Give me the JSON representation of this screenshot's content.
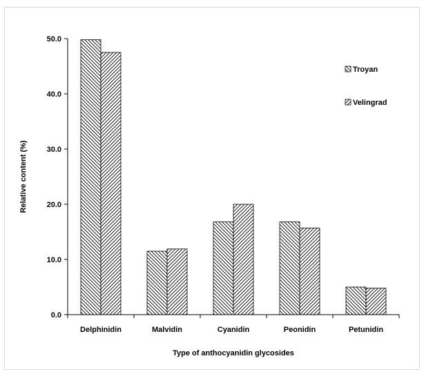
{
  "chart_data": {
    "type": "bar",
    "categories": [
      "Delphinidin",
      "Malvidin",
      "Cyanidin",
      "Peonidin",
      "Petunidin"
    ],
    "series": [
      {
        "name": "Troyan",
        "values": [
          49.8,
          11.5,
          16.8,
          16.8,
          5.0
        ],
        "pattern": "hatch-back"
      },
      {
        "name": "Velingrad",
        "values": [
          47.5,
          11.9,
          20.0,
          15.7,
          4.8
        ],
        "pattern": "hatch-forward"
      }
    ],
    "xlabel": "Type of anthocyanidin glycosides",
    "ylabel": "Relative content (%)",
    "ylim": [
      0,
      50
    ],
    "yticks": [
      "0.0",
      "10.0",
      "20.0",
      "30.0",
      "40.0",
      "50.0"
    ],
    "grid": false,
    "legend_position": "top-right",
    "colors": {
      "stroke": "#000000",
      "background": "#ffffff"
    }
  }
}
